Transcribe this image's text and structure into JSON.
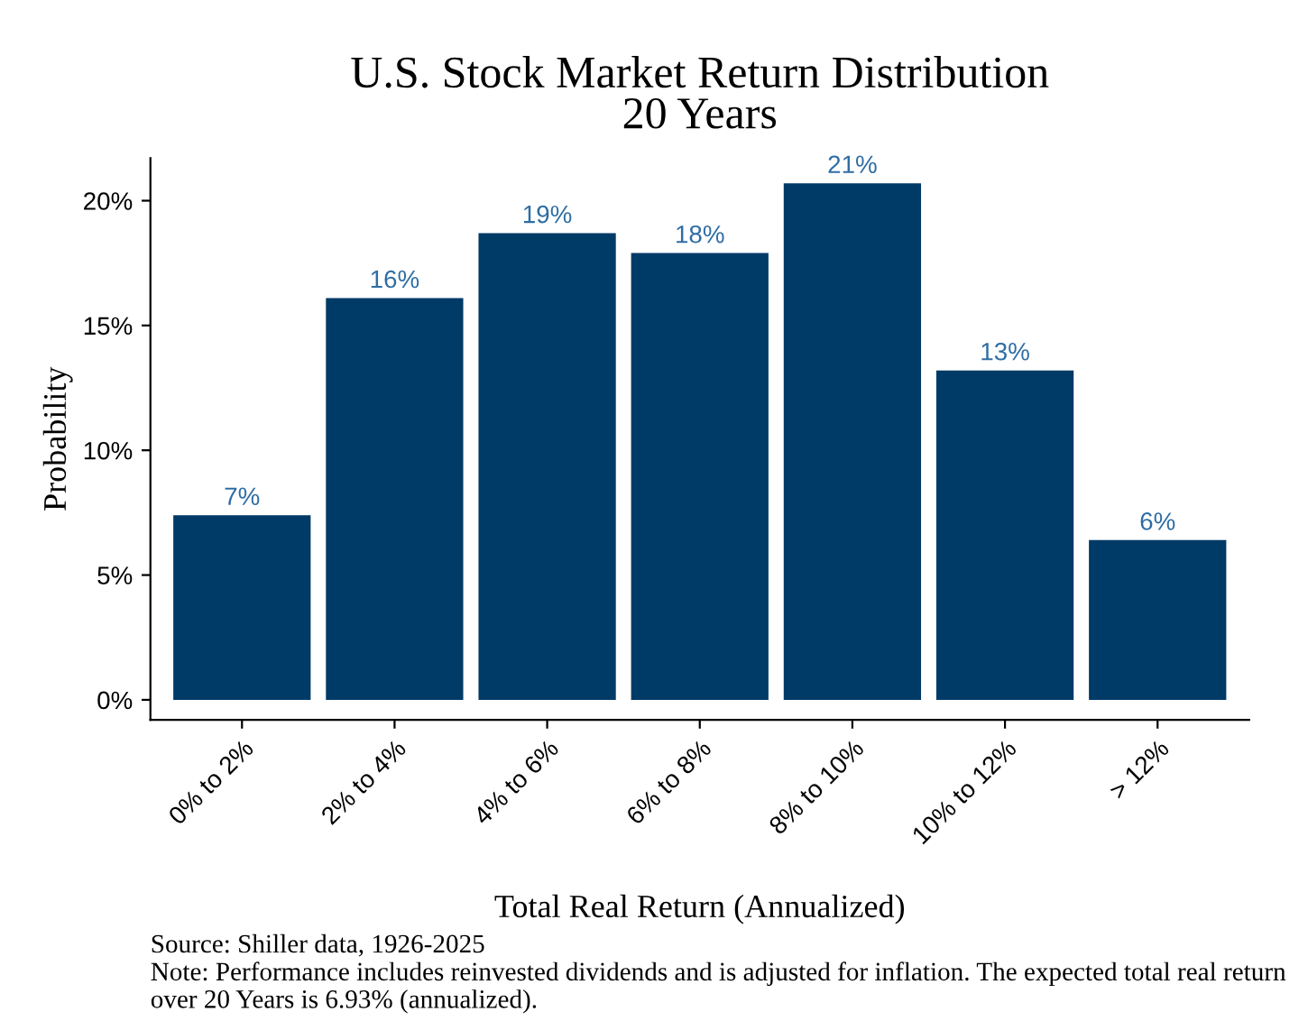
{
  "chart_data": {
    "type": "bar",
    "title": "U.S. Stock Market Return Distribution\n20 Years",
    "xlabel": "Total Real Return (Annualized)",
    "ylabel": "Probability",
    "categories": [
      "0% to 2%",
      "2% to 4%",
      "4% to 6%",
      "6% to 8%",
      "8% to 10%",
      "10% to 12%",
      "> 12%"
    ],
    "values": [
      7.4,
      16.1,
      18.7,
      17.9,
      20.7,
      13.2,
      6.4
    ],
    "value_labels": [
      "7%",
      "16%",
      "19%",
      "18%",
      "21%",
      "13%",
      "6%"
    ],
    "color": "#003a66",
    "ylim": [
      -0.8,
      21.7
    ],
    "yticks": [
      {
        "value": 0,
        "label": "0%"
      },
      {
        "value": 5,
        "label": "5%"
      },
      {
        "value": 10,
        "label": "10%"
      },
      {
        "value": 15,
        "label": "15%"
      },
      {
        "value": 20,
        "label": "20%"
      }
    ],
    "grid": false,
    "legend": false,
    "annotations": [
      "Source: Shiller data, 1926-2025",
      "Note: Performance includes reinvested dividends and is adjusted for inflation. The expected total real return over 20 Years is 6.93% (annualized)."
    ]
  }
}
